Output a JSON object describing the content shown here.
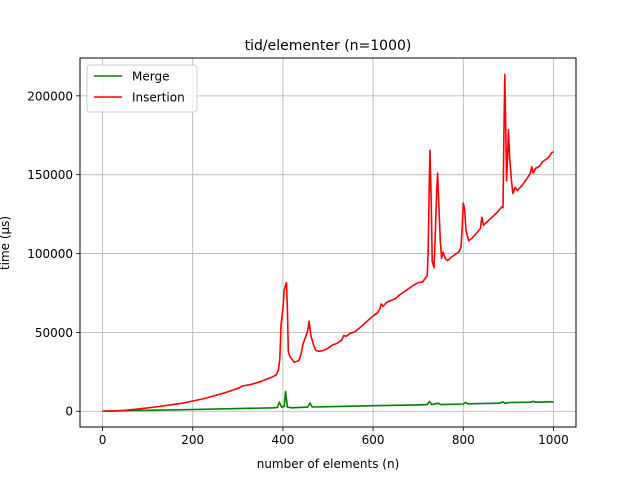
{
  "chart_data": {
    "type": "line",
    "title": "tid/elementer  (n=1000)",
    "xlabel": "number of elements (n)",
    "ylabel": "time (µs)",
    "xlim": [
      -50,
      1050
    ],
    "ylim": [
      -10000,
      224000
    ],
    "grid": true,
    "legend_position": "upper left",
    "xticks": [
      {
        "value": 0,
        "label": "0"
      },
      {
        "value": 200,
        "label": "200"
      },
      {
        "value": 400,
        "label": "400"
      },
      {
        "value": 600,
        "label": "600"
      },
      {
        "value": 800,
        "label": "800"
      },
      {
        "value": 1000,
        "label": "1000"
      }
    ],
    "yticks": [
      {
        "value": 0,
        "label": "0"
      },
      {
        "value": 50000,
        "label": "50000"
      },
      {
        "value": 100000,
        "label": "100000"
      },
      {
        "value": 150000,
        "label": "150000"
      },
      {
        "value": 200000,
        "label": "200000"
      }
    ],
    "series": [
      {
        "name": "Merge",
        "color": "#008000",
        "points": [
          [
            0,
            0
          ],
          [
            100,
            600
          ],
          [
            200,
            1100
          ],
          [
            300,
            1700
          ],
          [
            380,
            2200
          ],
          [
            388,
            2400
          ],
          [
            392,
            5800
          ],
          [
            397,
            2600
          ],
          [
            403,
            3000
          ],
          [
            406,
            12500
          ],
          [
            410,
            2600
          ],
          [
            420,
            2200
          ],
          [
            440,
            2400
          ],
          [
            455,
            2600
          ],
          [
            460,
            5200
          ],
          [
            465,
            2700
          ],
          [
            500,
            2900
          ],
          [
            600,
            3500
          ],
          [
            700,
            4000
          ],
          [
            720,
            4200
          ],
          [
            725,
            6200
          ],
          [
            730,
            4300
          ],
          [
            745,
            5000
          ],
          [
            750,
            4200
          ],
          [
            800,
            4600
          ],
          [
            805,
            5600
          ],
          [
            810,
            4700
          ],
          [
            880,
            5100
          ],
          [
            888,
            5900
          ],
          [
            892,
            5000
          ],
          [
            900,
            5500
          ],
          [
            950,
            5700
          ],
          [
            955,
            6300
          ],
          [
            960,
            5700
          ],
          [
            1000,
            6000
          ]
        ]
      },
      {
        "name": "Insertion",
        "color": "#ff0000",
        "points": [
          [
            0,
            0
          ],
          [
            25,
            200
          ],
          [
            50,
            600
          ],
          [
            75,
            1300
          ],
          [
            100,
            2100
          ],
          [
            125,
            3000
          ],
          [
            150,
            4000
          ],
          [
            175,
            5000
          ],
          [
            200,
            6500
          ],
          [
            225,
            8000
          ],
          [
            250,
            10000
          ],
          [
            275,
            12000
          ],
          [
            300,
            14500
          ],
          [
            310,
            16000
          ],
          [
            330,
            17000
          ],
          [
            350,
            18700
          ],
          [
            360,
            20000
          ],
          [
            375,
            21500
          ],
          [
            385,
            23000
          ],
          [
            390,
            26000
          ],
          [
            393,
            33000
          ],
          [
            396,
            55000
          ],
          [
            400,
            65000
          ],
          [
            403,
            77000
          ],
          [
            406,
            80000
          ],
          [
            408,
            81500
          ],
          [
            410,
            65000
          ],
          [
            412,
            38000
          ],
          [
            415,
            35000
          ],
          [
            420,
            33000
          ],
          [
            425,
            31000
          ],
          [
            435,
            32000
          ],
          [
            440,
            36000
          ],
          [
            445,
            43000
          ],
          [
            450,
            47000
          ],
          [
            455,
            51000
          ],
          [
            458,
            57000
          ],
          [
            462,
            48000
          ],
          [
            468,
            42000
          ],
          [
            473,
            38500
          ],
          [
            480,
            38000
          ],
          [
            490,
            38500
          ],
          [
            500,
            40000
          ],
          [
            510,
            42000
          ],
          [
            520,
            43000
          ],
          [
            530,
            45000
          ],
          [
            535,
            48000
          ],
          [
            540,
            47500
          ],
          [
            550,
            49500
          ],
          [
            560,
            50500
          ],
          [
            575,
            54000
          ],
          [
            590,
            58000
          ],
          [
            600,
            60500
          ],
          [
            610,
            62500
          ],
          [
            615,
            65000
          ],
          [
            618,
            68000
          ],
          [
            622,
            66500
          ],
          [
            630,
            69000
          ],
          [
            650,
            71500
          ],
          [
            660,
            74000
          ],
          [
            675,
            77000
          ],
          [
            690,
            80000
          ],
          [
            700,
            81500
          ],
          [
            710,
            82000
          ],
          [
            715,
            84000
          ],
          [
            720,
            86000
          ],
          [
            722,
            100000
          ],
          [
            724,
            134000
          ],
          [
            726,
            165500
          ],
          [
            729,
            130000
          ],
          [
            731,
            95000
          ],
          [
            735,
            91000
          ],
          [
            738,
            112000
          ],
          [
            741,
            140000
          ],
          [
            743,
            151000
          ],
          [
            746,
            130000
          ],
          [
            749,
            108000
          ],
          [
            752,
            97000
          ],
          [
            755,
            101000
          ],
          [
            760,
            97000
          ],
          [
            765,
            95500
          ],
          [
            775,
            98000
          ],
          [
            790,
            101000
          ],
          [
            795,
            104000
          ],
          [
            798,
            119000
          ],
          [
            800,
            132000
          ],
          [
            803,
            128000
          ],
          [
            806,
            115000
          ],
          [
            812,
            108000
          ],
          [
            820,
            110000
          ],
          [
            830,
            113000
          ],
          [
            838,
            116000
          ],
          [
            841,
            123000
          ],
          [
            845,
            118000
          ],
          [
            860,
            122000
          ],
          [
            875,
            126000
          ],
          [
            885,
            129500
          ],
          [
            888,
            129000
          ],
          [
            890,
            175000
          ],
          [
            892,
            213500
          ],
          [
            894,
            180000
          ],
          [
            896,
            146000
          ],
          [
            898,
            160000
          ],
          [
            900,
            178500
          ],
          [
            903,
            160000
          ],
          [
            907,
            146000
          ],
          [
            910,
            138000
          ],
          [
            915,
            142000
          ],
          [
            920,
            140000
          ],
          [
            930,
            143000
          ],
          [
            940,
            147000
          ],
          [
            948,
            150500
          ],
          [
            952,
            155000
          ],
          [
            955,
            151000
          ],
          [
            960,
            154000
          ],
          [
            970,
            155500
          ],
          [
            975,
            158000
          ],
          [
            980,
            159000
          ],
          [
            985,
            160000
          ],
          [
            992,
            162000
          ],
          [
            996,
            164000
          ],
          [
            1000,
            164500
          ]
        ]
      }
    ]
  }
}
